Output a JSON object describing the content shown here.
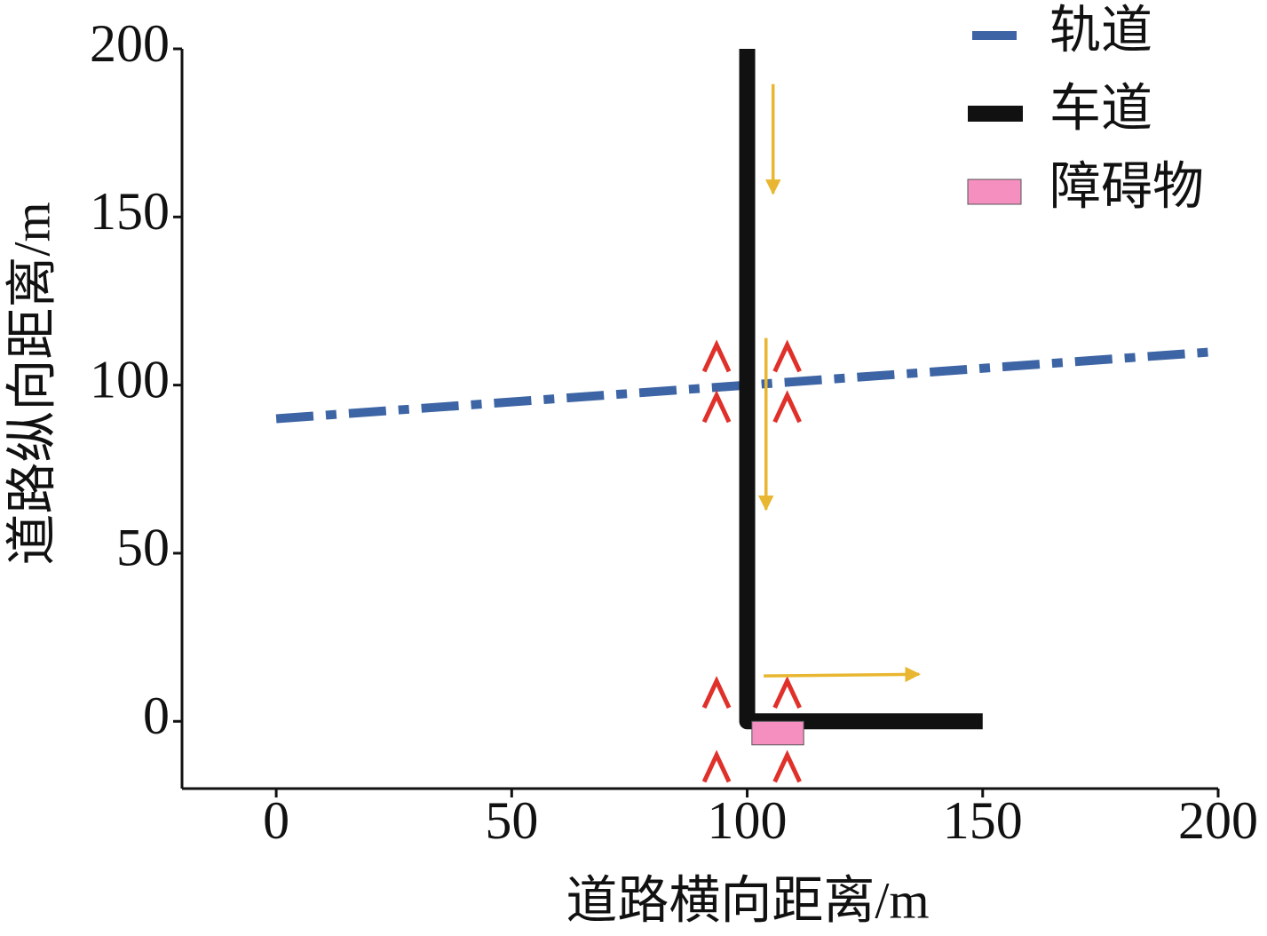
{
  "chart_data": {
    "type": "line",
    "xlabel": "道路横向距离/m",
    "ylabel": "道路纵向距离/m",
    "xlim": [
      -20,
      200
    ],
    "ylim": [
      -20,
      200
    ],
    "xticks": [
      0,
      50,
      100,
      150,
      200
    ],
    "yticks": [
      0,
      50,
      100,
      150,
      200
    ],
    "series": [
      {
        "name": "轨道",
        "color": "#3d64a4",
        "style": "dashdot",
        "x": [
          0,
          200
        ],
        "values": [
          90,
          110
        ]
      },
      {
        "name": "车道",
        "color": "#111111",
        "style": "solid",
        "x": [
          100,
          100,
          150
        ],
        "values": [
          200,
          0,
          0
        ]
      },
      {
        "name": "障碍物",
        "color": "#f48fbf",
        "style": "rect",
        "x": [
          101,
          112
        ],
        "values": [
          -7,
          0
        ]
      }
    ],
    "chevrons": {
      "color": "#e0302a",
      "x": [
        93.5,
        108.5,
        93.5,
        108.5,
        93.5,
        108.5,
        93.5,
        108.5
      ],
      "y": [
        108,
        108,
        93,
        93,
        8,
        8,
        -14,
        -14
      ]
    },
    "arrows": {
      "color": "#e8b630",
      "items": [
        {
          "x": [
            105.5,
            105.5
          ],
          "y": [
            189.5,
            157
          ]
        },
        {
          "x": [
            104,
            104
          ],
          "y": [
            114,
            63
          ]
        },
        {
          "x": [
            103.5,
            136.5
          ],
          "y": [
            13.5,
            14
          ]
        }
      ]
    }
  }
}
